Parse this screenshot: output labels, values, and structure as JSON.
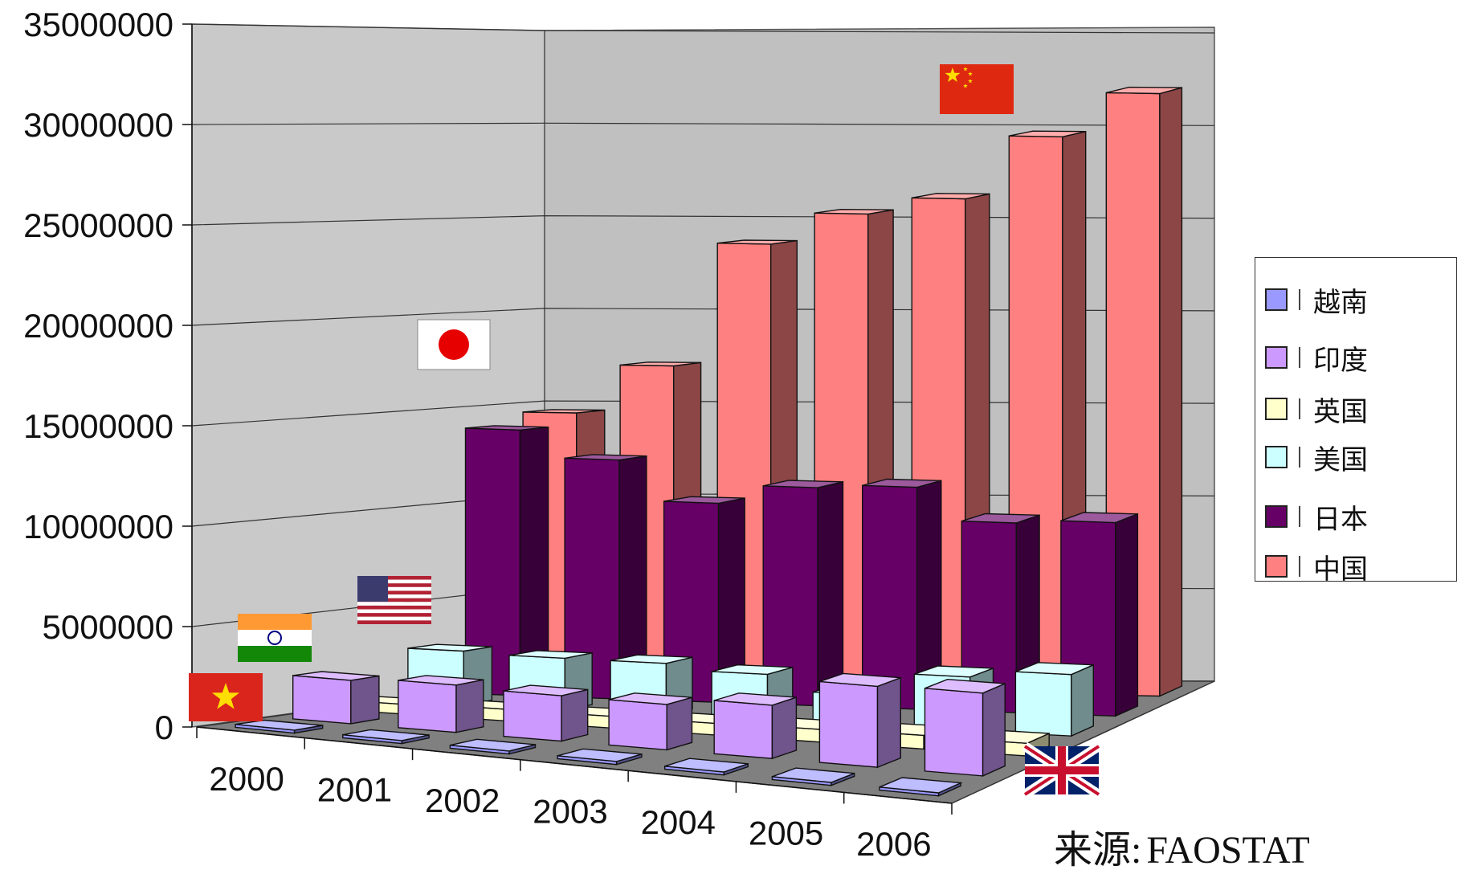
{
  "chart_data": {
    "type": "bar",
    "title": "",
    "categories": [
      "2000",
      "2001",
      "2002",
      "2003",
      "2004",
      "2005",
      "2006"
    ],
    "ylim": [
      0,
      35000000
    ],
    "yticks": [
      "35000000",
      "30000000",
      "25000000",
      "20000000",
      "15000000",
      "10000000",
      "5000000",
      "0"
    ],
    "grid": true,
    "legend_position": "right",
    "series": [
      {
        "name": "越南",
        "color": "#9999ff",
        "flag": "vietnam-flag",
        "values": [
          150000,
          150000,
          150000,
          150000,
          150000,
          150000,
          150000
        ]
      },
      {
        "name": "印度",
        "color": "#cc99ff",
        "flag": "india-flag",
        "values": [
          2200000,
          2400000,
          2300000,
          2300000,
          2700000,
          4100000,
          4200000
        ]
      },
      {
        "name": "英国",
        "color": "#ffffcc",
        "flag": "uk-flag",
        "values": [
          500000,
          600000,
          600000,
          600000,
          650000,
          700000,
          650000
        ]
      },
      {
        "name": "美国",
        "color": "#ccffff",
        "flag": "usa-flag",
        "values": [
          2800000,
          2700000,
          2700000,
          2400000,
          1600000,
          2800000,
          3200000
        ]
      },
      {
        "name": "日本",
        "color": "#660066",
        "flag": "japan-flag",
        "values": [
          14000000,
          12600000,
          10500000,
          11500000,
          11700000,
          10000000,
          10200000
        ]
      },
      {
        "name": "中国",
        "color": "#ff8080",
        "flag": "china-flag",
        "values": [
          14600000,
          17200000,
          23800000,
          25500000,
          26400000,
          29800000,
          32200000
        ]
      }
    ]
  },
  "source": {
    "label": "来源",
    "value": "FAOSTAT"
  }
}
